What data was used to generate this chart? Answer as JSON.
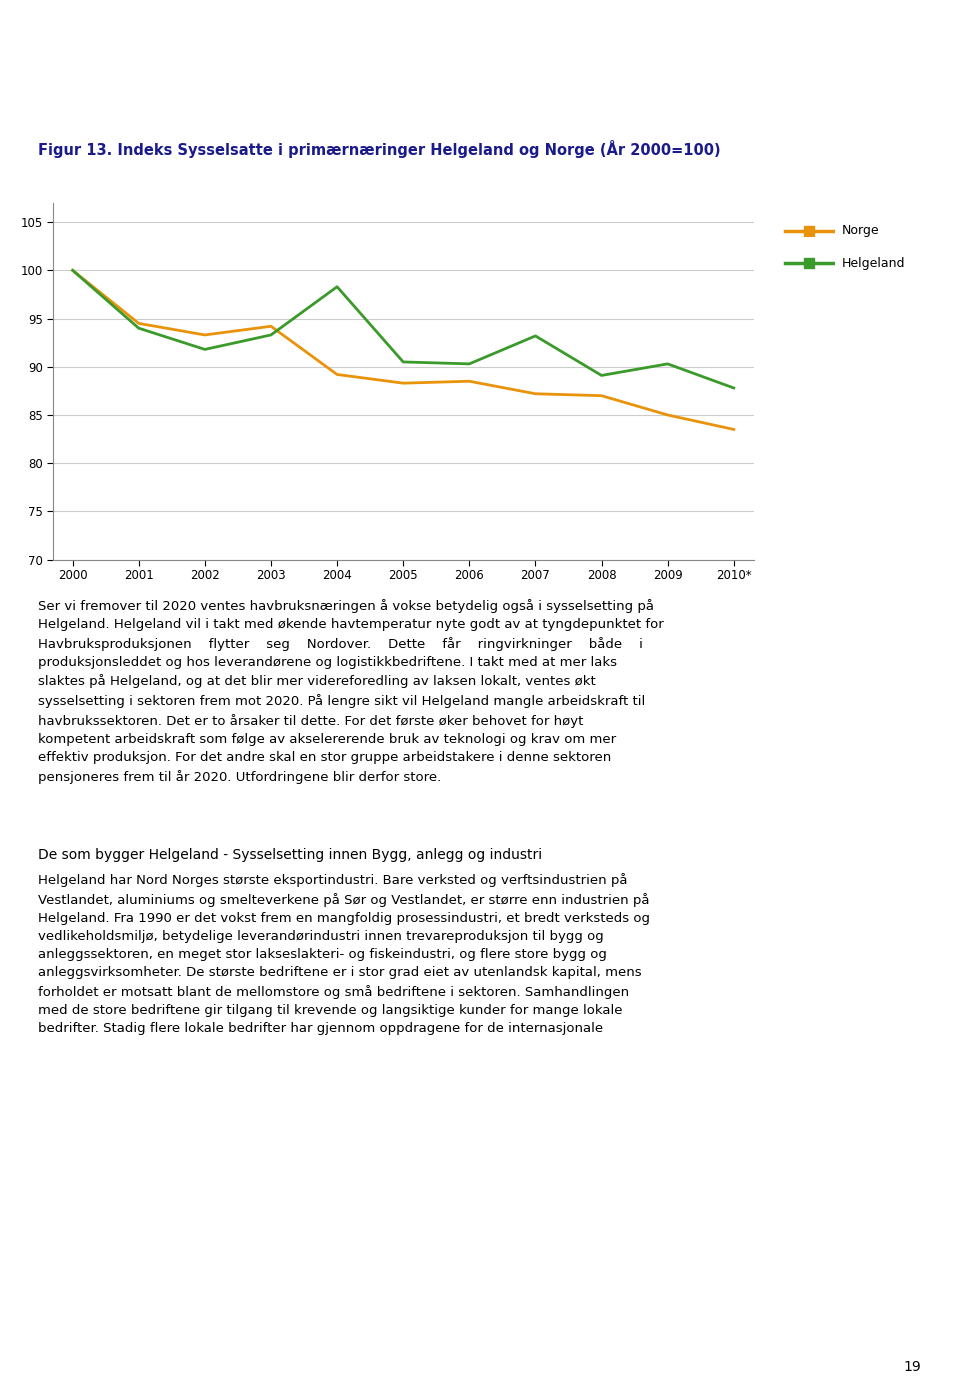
{
  "title": "Figur 13. Indeks Sysselsatte i primærnæringer Helgeland og Norge (År 2000=100)",
  "years": [
    "2000",
    "2001",
    "2002",
    "2003",
    "2004",
    "2005",
    "2006",
    "2007",
    "2008",
    "2009",
    "2010*"
  ],
  "norge": [
    100,
    94.5,
    93.3,
    94.2,
    89.2,
    88.3,
    88.5,
    87.2,
    87.0,
    85.0,
    83.5
  ],
  "helgeland": [
    100,
    94.0,
    91.8,
    93.3,
    98.3,
    90.5,
    90.3,
    93.2,
    89.1,
    90.3,
    87.8
  ],
  "norge_color": "#E8930A",
  "helgeland_color": "#3A9A2A",
  "ylim": [
    70,
    107
  ],
  "yticks": [
    70,
    75,
    80,
    85,
    90,
    95,
    100,
    105
  ],
  "legend_norge": "Norge",
  "legend_helgeland": "Helgeland",
  "background_color": "#ffffff",
  "grid_color": "#cccccc",
  "heading2": "De som bygger Helgeland - Sysselsetting innen Bygg, anlegg og industri",
  "page_number": "19",
  "line_width": 2.0
}
